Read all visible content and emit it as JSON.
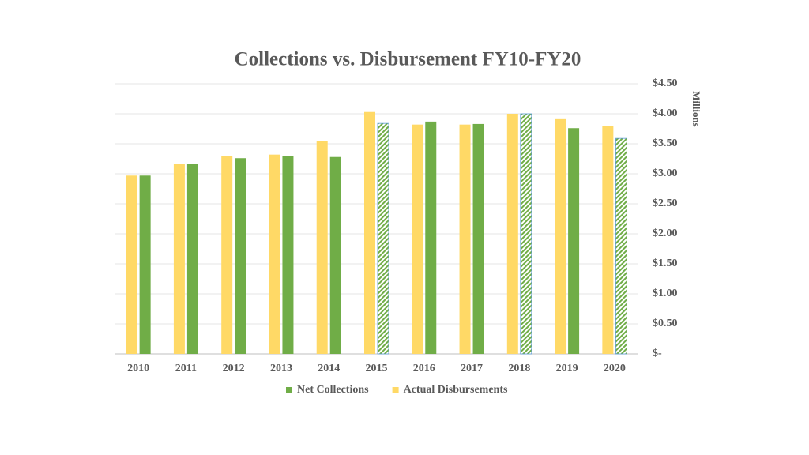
{
  "chart_data": {
    "type": "bar",
    "title": "Collections vs. Disbursement FY10-FY20",
    "y_label": "Millions",
    "categories": [
      "2010",
      "2011",
      "2012",
      "2013",
      "2014",
      "2015",
      "2016",
      "2017",
      "2018",
      "2019",
      "2020"
    ],
    "series": [
      {
        "name": "Net Collections",
        "color": "#70ad47",
        "values": [
          2.97,
          3.16,
          3.26,
          3.29,
          3.28,
          3.84,
          3.87,
          3.83,
          4.0,
          3.76,
          3.59
        ],
        "hatched": [
          false,
          false,
          false,
          false,
          false,
          true,
          false,
          false,
          true,
          false,
          true
        ]
      },
      {
        "name": "Actual Disbursements",
        "color": "#ffd966",
        "values": [
          2.97,
          3.17,
          3.3,
          3.32,
          3.55,
          4.03,
          3.82,
          3.82,
          4.0,
          3.91,
          3.8
        ]
      }
    ],
    "ylim": [
      0,
      4.5
    ],
    "yticks": [
      {
        "value": 0,
        "label": "$-"
      },
      {
        "value": 0.5,
        "label": "$0.50"
      },
      {
        "value": 1,
        "label": "$1.00"
      },
      {
        "value": 1.5,
        "label": "$1.50"
      },
      {
        "value": 2,
        "label": "$2.00"
      },
      {
        "value": 2.5,
        "label": "$2.50"
      },
      {
        "value": 3,
        "label": "$3.00"
      },
      {
        "value": 3.5,
        "label": "$3.50"
      },
      {
        "value": 4,
        "label": "$4.00"
      },
      {
        "value": 4.5,
        "label": "$4.50"
      }
    ],
    "y_axis_side": "right",
    "grid": true,
    "legend": "bottom"
  }
}
